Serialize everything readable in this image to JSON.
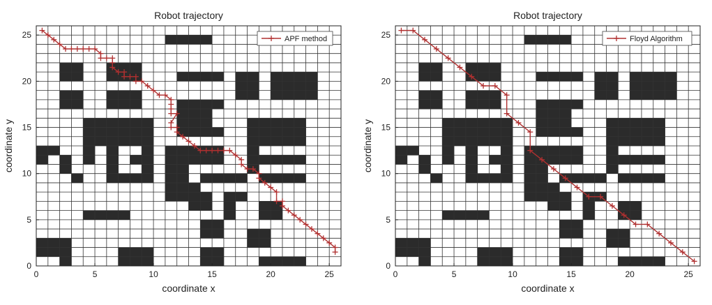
{
  "chart_data": [
    {
      "type": "line",
      "title": "Robot trajectory",
      "xlabel": "coordinate x",
      "ylabel": "coordinate y",
      "xlim": [
        0,
        26
      ],
      "ylim": [
        0,
        26
      ],
      "xticks": [
        "0",
        "5",
        "10",
        "15",
        "20",
        "25"
      ],
      "yticks": [
        "0",
        "5",
        "10",
        "15",
        "20",
        "25"
      ],
      "grid": true,
      "legend_position": "top-right",
      "colors": {
        "path": "#b03030",
        "obstacle": "#2b2b2b",
        "grid": "#333333"
      },
      "obstacles": [
        [
          11,
          24,
          4,
          1
        ],
        [
          2,
          20,
          2,
          2
        ],
        [
          6,
          20,
          3,
          2
        ],
        [
          12,
          20,
          4,
          1
        ],
        [
          17,
          20,
          2,
          1
        ],
        [
          20,
          20,
          4,
          1
        ],
        [
          2,
          17,
          2,
          2
        ],
        [
          6,
          17,
          3,
          2
        ],
        [
          12,
          17,
          4,
          1
        ],
        [
          12,
          15,
          3,
          2
        ],
        [
          17,
          18,
          2,
          2
        ],
        [
          20,
          18,
          4,
          2
        ],
        [
          4,
          13,
          6,
          3
        ],
        [
          12,
          14,
          4,
          1
        ],
        [
          18,
          13,
          5,
          3
        ],
        [
          0,
          11,
          1,
          2
        ],
        [
          1,
          12,
          1,
          1
        ],
        [
          2,
          10,
          1,
          2
        ],
        [
          3,
          9,
          1,
          1
        ],
        [
          4,
          11,
          1,
          2
        ],
        [
          6,
          10,
          1,
          3
        ],
        [
          6,
          9,
          4,
          1
        ],
        [
          9,
          10,
          1,
          3
        ],
        [
          8,
          11,
          1,
          1
        ],
        [
          11,
          9,
          2,
          4
        ],
        [
          11,
          7,
          3,
          2
        ],
        [
          13,
          11,
          3,
          2
        ],
        [
          14,
          9,
          4,
          1
        ],
        [
          18,
          10,
          1,
          3
        ],
        [
          19,
          11,
          4,
          1
        ],
        [
          19,
          9,
          4,
          1
        ],
        [
          13,
          6,
          2,
          2
        ],
        [
          16,
          7,
          2,
          1
        ],
        [
          4,
          5,
          4,
          1
        ],
        [
          16,
          5,
          1,
          2
        ],
        [
          19,
          5,
          2,
          2
        ],
        [
          0,
          1,
          2,
          2
        ],
        [
          2,
          0,
          1,
          3
        ],
        [
          14,
          3,
          2,
          2
        ],
        [
          14,
          1,
          2,
          1
        ],
        [
          18,
          2,
          2,
          2
        ],
        [
          7,
          0,
          3,
          2
        ],
        [
          14,
          0,
          2,
          1
        ],
        [
          19,
          0,
          4,
          1
        ]
      ],
      "series": [
        {
          "name": "APF method",
          "x": [
            0.5,
            1,
            1.5,
            2,
            2.5,
            3,
            3.5,
            4,
            4.5,
            5,
            5.5,
            5.5,
            6,
            6.5,
            6.5,
            6.5,
            7,
            7.5,
            7.5,
            8,
            8.5,
            8.5,
            9,
            9.5,
            10,
            10.5,
            11,
            11.5,
            11.5,
            11.5,
            11.5,
            12,
            11.5,
            11.5,
            12,
            12,
            12.5,
            13,
            13.5,
            14,
            14.5,
            15,
            15.5,
            16,
            16.5,
            17,
            17.5,
            17.5,
            18,
            18.5,
            19,
            19,
            19.5,
            20,
            20.5,
            20.5,
            21,
            21,
            21.5,
            22,
            22.5,
            23,
            23.5,
            24,
            24.5,
            25,
            25.5,
            25.5
          ],
          "y": [
            25.5,
            25,
            24.5,
            24,
            23.5,
            23.5,
            23.5,
            23.5,
            23.5,
            23.5,
            23,
            22.5,
            22.5,
            22.5,
            22,
            21.5,
            21,
            21,
            20.5,
            20.5,
            20.5,
            20,
            20,
            19.5,
            19,
            18.5,
            18.5,
            18,
            17.5,
            17,
            16.5,
            16.5,
            15.5,
            15,
            15,
            14.5,
            14,
            13.5,
            13,
            12.5,
            12.5,
            12.5,
            12.5,
            12.5,
            12.5,
            12,
            11.5,
            11,
            10.5,
            10.5,
            10,
            9.5,
            9,
            8.5,
            8,
            7,
            7,
            6.5,
            6,
            5.5,
            5,
            4.5,
            4,
            3.5,
            3,
            2.5,
            2,
            1.5
          ]
        },
        {
          "name": "Floyd Algorithm",
          "x": [
            0.5,
            1.5,
            2.5,
            3.5,
            4.5,
            5.5,
            6.5,
            7.5,
            8.5,
            9.5,
            9.5,
            10.5,
            11.5,
            11.5,
            12.5,
            13.5,
            14.5,
            15.5,
            16.5,
            17.5,
            18.5,
            19.5,
            20.5,
            21.5,
            22.5,
            23.5,
            24.5,
            25.5
          ],
          "y": [
            25.5,
            25.5,
            24.5,
            23.5,
            22.5,
            21.5,
            20.5,
            19.5,
            19.5,
            18.5,
            16.5,
            15.5,
            14.5,
            12.5,
            11.5,
            10.5,
            9.5,
            8.5,
            7.5,
            7.5,
            6.5,
            5.5,
            4.5,
            4.5,
            3.5,
            2.5,
            1.5,
            0.5
          ]
        }
      ]
    }
  ]
}
